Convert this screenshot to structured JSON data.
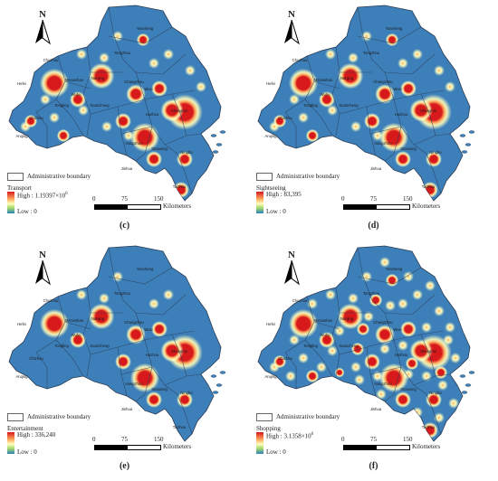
{
  "panels": [
    {
      "label": "(c)",
      "legend_title": "Transport",
      "high_text": "High : 1.19397×10",
      "high_sup": "6",
      "low_text": "Low : 0",
      "hotspot_density": "medium"
    },
    {
      "label": "(d)",
      "legend_title": "Sightseeing",
      "high_text": "High : 83,395",
      "high_sup": "",
      "low_text": "Low : 0",
      "hotspot_density": "medium"
    },
    {
      "label": "(e)",
      "legend_title": "Entertainment",
      "high_text": "High : 336,240",
      "high_sup": "",
      "low_text": "Low : 0",
      "hotspot_density": "low"
    },
    {
      "label": "(f)",
      "legend_title": "Shopping",
      "high_text": "High : 3.1358×10",
      "high_sup": "6",
      "low_text": "Low : 0",
      "hotspot_density": "high"
    }
  ],
  "common": {
    "north_label": "N",
    "boundary_label": "Administrative boundary",
    "scale_ticks": [
      "0",
      "75",
      "150"
    ],
    "scale_unit": "Kilometers"
  },
  "colors": {
    "base": "#3d7fb9",
    "boundary": "#2a3d55",
    "high": "#d7191c",
    "mid": "#fdae61",
    "low_mid": "#ffffbf"
  },
  "place_names": [
    "Yancheng",
    "Tongzhou",
    "Chuzhou",
    "Ma'anshan",
    "Wuhu",
    "Tongling",
    "Anqing",
    "Chizhou",
    "Xuancheng",
    "Changzhou",
    "Wuxi",
    "Huzhou",
    "Hangzhou",
    "Shaoxing",
    "Ningbo",
    "Jinhua",
    "Taizhou",
    "Hefei",
    "Nanjing",
    "Shanghai"
  ]
}
